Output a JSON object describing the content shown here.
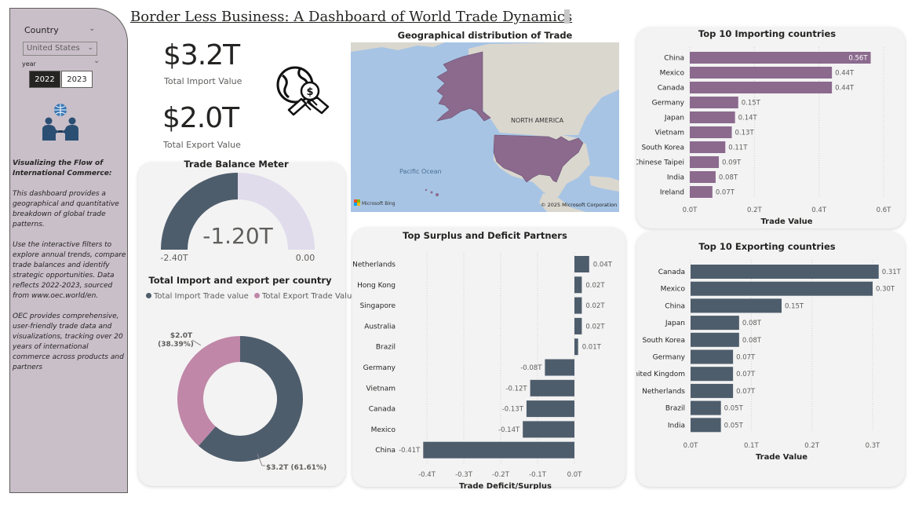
{
  "sidebar": {
    "country_label": "Country",
    "country_value": "United States",
    "year_label": "year",
    "years": [
      "2022",
      "2023"
    ],
    "selected_year": "2022",
    "text_heading": "Visualizing the Flow of International Commerce:",
    "text_p1": "This dashboard provides a geographical and quantitative breakdown of global trade patterns.",
    "text_p2": "Use the interactive filters to explore annual trends, compare trade balances and identify strategic opportunities. Data reflects 2022-2023, sourced from www.oec.world/en.",
    "text_p3": "OEC provides comprehensive, user-friendly trade data and visualizations, tracking over 20 years of international commerce across products and partners"
  },
  "header": {
    "title": "Border Less Business: A Dashboard of World Trade Dynamics"
  },
  "kpis": {
    "import_value": "$3.2T",
    "import_label": "Total Import Value",
    "export_value": "$2.0T",
    "export_label": "Total Export Value"
  },
  "map": {
    "title": "Geographical distribution of Trade",
    "labels": {
      "north_america": "NORTH AMERICA",
      "pacific": "Pacific Ocean",
      "bing": "Microsoft Bing",
      "copyright": "© 2025 Microsoft Corporation"
    }
  },
  "gauge": {
    "title": "Trade Balance Meter",
    "value_label": "-1.20T",
    "min_label": "-2.40T",
    "max_label": "0.00",
    "value": -1.2,
    "min": -2.4,
    "max": 0,
    "fill_color": "#4e5d6c",
    "track_color": "#e0dcec"
  },
  "chart_data": [
    {
      "id": "donut",
      "type": "pie",
      "title": "Total Import and export per country",
      "series": [
        {
          "name": "Total Import Trade value",
          "value": 3.2,
          "label": "$3.2T (61.61%)",
          "color": "#4e5d6c"
        },
        {
          "name": "Total Export Trade Value",
          "value": 2.0,
          "label_value": "$2.0T",
          "label_pct": "(38.39%)",
          "color": "#c087a8"
        }
      ]
    },
    {
      "id": "importers",
      "type": "bar",
      "title": "Top 10 Importing countries",
      "xlabel": "Trade Value",
      "categories": [
        "China",
        "Mexico",
        "Canada",
        "Germany",
        "Japan",
        "Vietnam",
        "South Korea",
        "Chinese Taipei",
        "India",
        "Ireland"
      ],
      "values": [
        0.56,
        0.44,
        0.44,
        0.15,
        0.14,
        0.13,
        0.11,
        0.09,
        0.08,
        0.07
      ],
      "labels": [
        "0.56T",
        "0.44T",
        "0.44T",
        "0.15T",
        "0.14T",
        "0.13T",
        "0.11T",
        "0.09T",
        "0.08T",
        "0.07T"
      ],
      "xticks": [
        0,
        0.2,
        0.4,
        0.6
      ],
      "xtick_labels": [
        "0.0T",
        "0.2T",
        "0.4T",
        "0.6T"
      ],
      "xlim": [
        0,
        0.6
      ],
      "color": "#8b6a8e"
    },
    {
      "id": "exporters",
      "type": "bar",
      "title": "Top 10 Exporting countries",
      "xlabel": "Trade Value",
      "categories": [
        "Canada",
        "Mexico",
        "China",
        "Japan",
        "South Korea",
        "Germany",
        "United Kingdom",
        "Netherlands",
        "Brazil",
        "India"
      ],
      "values": [
        0.31,
        0.3,
        0.15,
        0.08,
        0.08,
        0.07,
        0.07,
        0.07,
        0.05,
        0.05
      ],
      "labels": [
        "0.31T",
        "0.30T",
        "0.15T",
        "0.08T",
        "0.08T",
        "0.07T",
        "0.07T",
        "0.07T",
        "0.05T",
        "0.05T"
      ],
      "xticks": [
        0,
        0.1,
        0.2,
        0.3
      ],
      "xtick_labels": [
        "0.0T",
        "0.1T",
        "0.2T",
        "0.3T"
      ],
      "xlim": [
        0,
        0.3
      ],
      "color": "#4e5d6c"
    },
    {
      "id": "surplus",
      "type": "bar",
      "title": "Top Surplus and Deficit Partners",
      "xlabel": "Trade Deficit/Surplus",
      "categories": [
        "Netherlands",
        "Hong Kong",
        "Singapore",
        "Australia",
        "Brazil",
        "Germany",
        "Vietnam",
        "Canada",
        "Mexico",
        "China"
      ],
      "values": [
        0.04,
        0.02,
        0.02,
        0.02,
        0.01,
        -0.08,
        -0.12,
        -0.13,
        -0.14,
        -0.41
      ],
      "labels": [
        "0.04T",
        "0.02T",
        "0.02T",
        "0.02T",
        "0.01T",
        "-0.08T",
        "-0.12T",
        "-0.13T",
        "-0.14T",
        "-0.41T"
      ],
      "xticks": [
        -0.4,
        -0.3,
        -0.2,
        -0.1,
        0
      ],
      "xtick_labels": [
        "-0.4T",
        "-0.3T",
        "-0.2T",
        "-0.1T",
        "0.0T"
      ],
      "xlim": [
        -0.41,
        0.04
      ],
      "color": "#4e5d6c"
    }
  ]
}
